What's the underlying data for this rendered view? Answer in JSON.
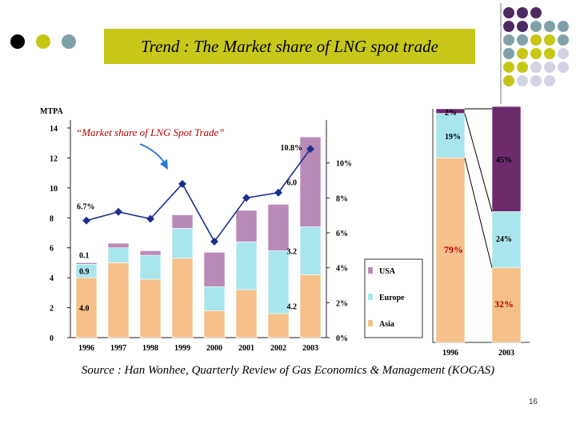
{
  "slide": {
    "title": "Trend : The Market share of LNG spot trade",
    "source": "Source : Han Wonhee, Quarterly Review of Gas Economics & Management (KOGAS)",
    "page_number": "16"
  },
  "colors": {
    "asia": "#f5c08a",
    "europe": "#a8e6ec",
    "usa": "#b98ab8",
    "usa_dark": "#6b2a6b",
    "line": "#1a2f8c",
    "title_bg": "#c8c81a",
    "dot_dark": "#4e2a62",
    "dot_teal": "#7fa0a6",
    "dot_olive": "#c6c617",
    "dot_lavender": "#d3d3e4"
  },
  "chart_data": [
    {
      "type": "bar",
      "stacked": true,
      "ylabel": "MTPA",
      "ylim": [
        0,
        14
      ],
      "y_ticks": [
        "0",
        "2",
        "4",
        "6",
        "8",
        "10",
        "12",
        "14"
      ],
      "categories": [
        "1996",
        "1997",
        "1998",
        "1999",
        "2000",
        "2001",
        "2002",
        "2003"
      ],
      "series": [
        {
          "name": "Asia",
          "values": [
            4.0,
            5.0,
            3.9,
            5.3,
            1.8,
            3.2,
            1.6,
            4.2
          ]
        },
        {
          "name": "Europe",
          "values": [
            0.9,
            1.0,
            1.6,
            2.0,
            1.6,
            3.2,
            4.2,
            3.2
          ]
        },
        {
          "name": "USA",
          "values": [
            0.1,
            0.3,
            0.3,
            0.9,
            2.3,
            2.1,
            3.1,
            6.0
          ]
        }
      ],
      "segment_labels": {
        "1996": [
          "4.0",
          "0.9",
          "0.1"
        ],
        "2003": [
          "4.2",
          "3.2",
          "6.0"
        ]
      },
      "secondary_axis": {
        "label_ticks": [
          "0%",
          "2%",
          "4%",
          "6%",
          "8%",
          "10%"
        ],
        "ylim": [
          0,
          12
        ]
      },
      "line_series": {
        "name": "Market share of LNG Spot Trade",
        "annotation": "“Market share of LNG Spot Trade”",
        "values": [
          6.7,
          7.2,
          6.8,
          8.8,
          5.5,
          8.0,
          8.3,
          10.8
        ],
        "point_labels": {
          "0": "6.7%",
          "7": "10.8%"
        }
      },
      "legend": {
        "placement": "right",
        "entries": [
          "USA",
          "Europe",
          "Asia"
        ]
      }
    },
    {
      "type": "bar",
      "stacked": true,
      "percent": true,
      "categories": [
        "1996",
        "2003"
      ],
      "series": [
        {
          "name": "Asia",
          "values": [
            79,
            32
          ],
          "labels": [
            "79%",
            "32%"
          ]
        },
        {
          "name": "Europe",
          "values": [
            19,
            24
          ],
          "labels": [
            "19%",
            "24%"
          ]
        },
        {
          "name": "USA",
          "values": [
            2,
            45
          ],
          "labels": [
            "2%",
            "45%"
          ]
        }
      ]
    }
  ]
}
